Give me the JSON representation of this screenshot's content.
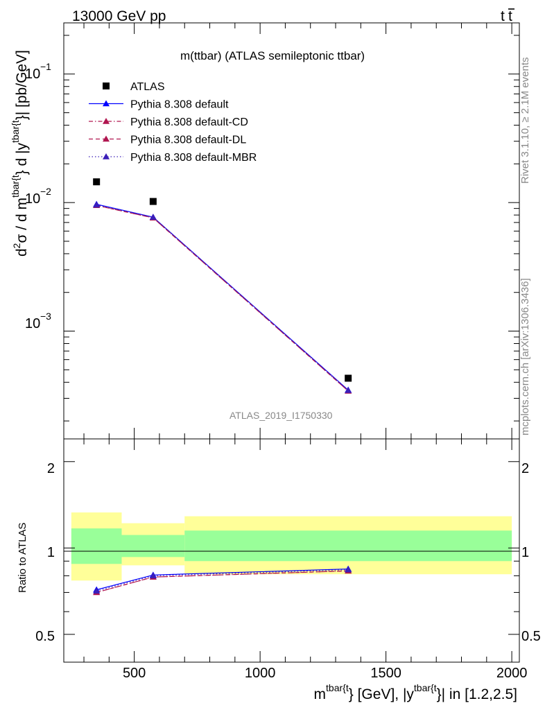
{
  "header": {
    "left": "13000 GeV pp",
    "right_main": "t",
    "right_bar": "t"
  },
  "side": {
    "rivet": "Rivet 3.1.10, ≥ 2.1M events",
    "mcplots": "mcplots.cern.ch [arXiv:1306.3436]"
  },
  "main_panel": {
    "title": "m(ttbar) (ATLAS semileptonic ttbar)",
    "watermark": "ATLAS_2019_I1750330",
    "ylabel": {
      "d2": "d",
      "sup2": "2",
      "sigma_over": "σ /  d m",
      "sup_tbar1": "tbar{t",
      "mid": "} d |y",
      "sup_tbar2": "tbar{t",
      "tail": "}| [pb/GeV]"
    },
    "ytick_labels": [
      {
        "base": "10",
        "exp": "−1"
      },
      {
        "base": "10",
        "exp": "−2"
      },
      {
        "base": "10",
        "exp": "−3"
      }
    ]
  },
  "ratio_panel": {
    "ylabel": "Ratio to ATLAS",
    "ytick_labels": [
      "0.5",
      "1",
      "2"
    ]
  },
  "xlabel": {
    "m": "m",
    "sup1": "tbar{t",
    "mid": "} [GeV], |y",
    "sup2": "tbar{t",
    "tail": "}| in [1.2,2.5]"
  },
  "chart_data": {
    "type": "line",
    "x_range": [
      220,
      2030
    ],
    "xticks": [
      500,
      1000,
      1500,
      2000
    ],
    "main": {
      "ylog": true,
      "ylim": [
        0.000145,
        0.25
      ],
      "legend_position": "top-left",
      "series": [
        {
          "name": "ATLAS",
          "color": "#000000",
          "marker": "square",
          "x": [
            350,
            575,
            1350
          ],
          "y": [
            0.0145,
            0.0102,
            0.00043
          ]
        },
        {
          "name": "Pythia 8.308 default",
          "color": "#0000ff",
          "dash": "solid",
          "marker": "triangle",
          "x": [
            350,
            575,
            1350
          ],
          "y": [
            0.0097,
            0.0077,
            0.000348
          ]
        },
        {
          "name": "Pythia 8.308 default-CD",
          "color": "#b0154f",
          "dash": "dashdot",
          "marker": "triangle",
          "x": [
            350,
            575,
            1350
          ],
          "y": [
            0.0095,
            0.0076,
            0.000342
          ]
        },
        {
          "name": "Pythia 8.308 default-DL",
          "color": "#b0154f",
          "dash": "dashed",
          "marker": "triangle",
          "x": [
            350,
            575,
            1350
          ],
          "y": [
            0.0095,
            0.0076,
            0.000342
          ]
        },
        {
          "name": "Pythia 8.308 default-MBR",
          "color": "#3b1fb8",
          "dash": "dotted",
          "marker": "triangle",
          "x": [
            350,
            575,
            1350
          ],
          "y": [
            0.0096,
            0.0077,
            0.000346
          ]
        }
      ]
    },
    "ratio": {
      "ylog": true,
      "ylim": [
        0.4,
        2.4
      ],
      "reference_line": 1,
      "bands": [
        {
          "x0": 250,
          "x1": 450,
          "yellow": [
            0.77,
            1.33
          ],
          "green": [
            0.88,
            1.17
          ]
        },
        {
          "x0": 450,
          "x1": 700,
          "yellow": [
            0.87,
            1.22
          ],
          "green": [
            0.93,
            1.11
          ]
        },
        {
          "x0": 700,
          "x1": 2000,
          "yellow": [
            0.81,
            1.29
          ],
          "green": [
            0.9,
            1.15
          ]
        }
      ],
      "series": [
        {
          "name": "Pythia 8.308 default",
          "color": "#0000ff",
          "dash": "solid",
          "x": [
            350,
            575,
            1350
          ],
          "y": [
            0.715,
            0.805,
            0.845
          ]
        },
        {
          "name": "Pythia 8.308 default-CD",
          "color": "#b0154f",
          "dash": "dashdot",
          "x": [
            350,
            575,
            1350
          ],
          "y": [
            0.7,
            0.792,
            0.832
          ]
        },
        {
          "name": "Pythia 8.308 default-DL",
          "color": "#b0154f",
          "dash": "dashed",
          "x": [
            350,
            575,
            1350
          ],
          "y": [
            0.7,
            0.792,
            0.832
          ]
        },
        {
          "name": "Pythia 8.308 default-MBR",
          "color": "#3b1fb8",
          "dash": "dotted",
          "x": [
            350,
            575,
            1350
          ],
          "y": [
            0.708,
            0.8,
            0.84
          ]
        }
      ]
    }
  }
}
